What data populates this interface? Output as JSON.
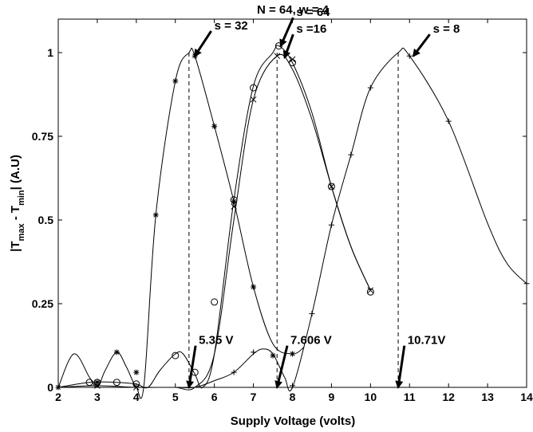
{
  "chart_data": {
    "type": "line",
    "title": "N = 64,  w = 4",
    "xlabel": "Supply Voltage (volts)",
    "ylabel": "|T_max - T_min| (A.U)",
    "xlim": [
      2,
      14
    ],
    "ylim": [
      0,
      1.1
    ],
    "xticks": [
      2,
      3,
      4,
      5,
      6,
      7,
      8,
      9,
      10,
      11,
      12,
      13,
      14
    ],
    "yticks": [
      {
        "value": 0,
        "label": "0"
      },
      {
        "value": 0.25,
        "label": "0.25"
      },
      {
        "value": 0.5,
        "label": "0.5"
      },
      {
        "value": 0.75,
        "label": "0.75"
      },
      {
        "value": 1,
        "label": "1"
      }
    ],
    "grid": false,
    "series": [
      {
        "name": "s = 32",
        "marker": "asterisk",
        "curve": [
          [
            2,
            0
          ],
          [
            2.4,
            0.1
          ],
          [
            2.8,
            0.03
          ],
          [
            3.0,
            0.0
          ],
          [
            3.2,
            0.05
          ],
          [
            3.5,
            0.105
          ],
          [
            3.75,
            0.06
          ],
          [
            4.0,
            0.0
          ],
          [
            4.2,
            0.01
          ],
          [
            4.5,
            0.515
          ],
          [
            5.0,
            0.915
          ],
          [
            5.35,
            1.0
          ],
          [
            5.5,
            0.99
          ],
          [
            6.0,
            0.78
          ],
          [
            6.5,
            0.555
          ],
          [
            7.0,
            0.3
          ],
          [
            7.5,
            0.13
          ],
          [
            8.0,
            0.1
          ],
          [
            8.3,
            0.12
          ]
        ],
        "points": [
          [
            2,
            0
          ],
          [
            3,
            0.015
          ],
          [
            3.5,
            0.105
          ],
          [
            4,
            0.045
          ],
          [
            4.5,
            0.515
          ],
          [
            5,
            0.915
          ],
          [
            5.5,
            0.99
          ],
          [
            6,
            0.78
          ],
          [
            6.5,
            0.555
          ],
          [
            7,
            0.3
          ],
          [
            7.5,
            0.095
          ],
          [
            8,
            0.1
          ]
        ]
      },
      {
        "name": "s = 64",
        "marker": "circle",
        "curve": [
          [
            2,
            0
          ],
          [
            2.8,
            0.015
          ],
          [
            3.5,
            0.015
          ],
          [
            4.0,
            0.01
          ],
          [
            4.3,
            0.0
          ],
          [
            4.6,
            0.05
          ],
          [
            5.0,
            0.1
          ],
          [
            5.2,
            0.1
          ],
          [
            5.5,
            0.04
          ],
          [
            5.7,
            0.0
          ],
          [
            6.0,
            0.1
          ],
          [
            6.5,
            0.56
          ],
          [
            7.0,
            0.9
          ],
          [
            7.5,
            1.0
          ],
          [
            7.65,
            1.02
          ],
          [
            8.0,
            0.97
          ],
          [
            8.5,
            0.82
          ],
          [
            9.0,
            0.6
          ],
          [
            9.5,
            0.42
          ],
          [
            10.0,
            0.29
          ]
        ],
        "points": [
          [
            2.8,
            0.015
          ],
          [
            3,
            0.015
          ],
          [
            3.5,
            0.015
          ],
          [
            4,
            0.01
          ],
          [
            5,
            0.095
          ],
          [
            5.5,
            0.045
          ],
          [
            6,
            0.255
          ],
          [
            6.5,
            0.56
          ],
          [
            7,
            0.895
          ],
          [
            7.65,
            1.02
          ],
          [
            8,
            0.97
          ],
          [
            9,
            0.6
          ],
          [
            10,
            0.285
          ]
        ]
      },
      {
        "name": "s =16",
        "marker": "x",
        "curve": [
          [
            2,
            0
          ],
          [
            3.0,
            0.005
          ],
          [
            4.0,
            0.0
          ],
          [
            4.5,
            0.0
          ],
          [
            5.0,
            0.0
          ],
          [
            5.5,
            0.0
          ],
          [
            6.0,
            0.1
          ],
          [
            6.5,
            0.5
          ],
          [
            7.0,
            0.86
          ],
          [
            7.606,
            0.99
          ],
          [
            8.0,
            0.95
          ],
          [
            8.5,
            0.8
          ],
          [
            9.0,
            0.6
          ],
          [
            9.5,
            0.42
          ],
          [
            10.0,
            0.29
          ]
        ],
        "points": [
          [
            3,
            0.005
          ],
          [
            4,
            0.0
          ],
          [
            6.5,
            0.54
          ],
          [
            7,
            0.86
          ],
          [
            7.606,
            0.99
          ],
          [
            8,
            0.98
          ],
          [
            9,
            0.6
          ],
          [
            10,
            0.29
          ]
        ]
      },
      {
        "name": "s = 8",
        "marker": "plus",
        "curve": [
          [
            2,
            0
          ],
          [
            4,
            0
          ],
          [
            5,
            0
          ],
          [
            5.5,
            0
          ],
          [
            6.0,
            0.02
          ],
          [
            6.5,
            0.045
          ],
          [
            7.0,
            0.1
          ],
          [
            7.25,
            0.115
          ],
          [
            7.5,
            0.1
          ],
          [
            7.8,
            0.03
          ],
          [
            8.0,
            0.0
          ],
          [
            8.5,
            0.22
          ],
          [
            9.0,
            0.485
          ],
          [
            9.5,
            0.695
          ],
          [
            10.0,
            0.895
          ],
          [
            10.71,
            1.0
          ],
          [
            11.0,
            0.99
          ],
          [
            12.0,
            0.795
          ],
          [
            13.0,
            0.49
          ],
          [
            13.5,
            0.37
          ],
          [
            14.0,
            0.31
          ]
        ],
        "points": [
          [
            6.5,
            0.045
          ],
          [
            7,
            0.105
          ],
          [
            8,
            0.005
          ],
          [
            8.5,
            0.22
          ],
          [
            9,
            0.485
          ],
          [
            9.5,
            0.695
          ],
          [
            10,
            0.895
          ],
          [
            11,
            0.99
          ],
          [
            12,
            0.795
          ],
          [
            14,
            0.31
          ]
        ]
      }
    ],
    "vlines": [
      5.35,
      7.606,
      10.71
    ],
    "annotations": [
      {
        "text": "s = 32",
        "arrow_to": [
          5.5,
          0.99
        ],
        "text_at": [
          6.0,
          1.055
        ]
      },
      {
        "text": "s = 64",
        "arrow_to": [
          7.7,
          1.02
        ],
        "text_at": [
          8.1,
          1.095
        ]
      },
      {
        "text": "s =16",
        "arrow_to": [
          7.8,
          0.985
        ],
        "text_at": [
          8.1,
          1.045
        ]
      },
      {
        "text": "s = 8",
        "arrow_to": [
          11.1,
          0.99
        ],
        "text_at": [
          11.6,
          1.045
        ]
      },
      {
        "text": "5.35 V",
        "arrow_to": [
          5.35,
          0.0
        ],
        "text_at": [
          5.6,
          0.115
        ]
      },
      {
        "text": "7.606 V",
        "arrow_to": [
          7.606,
          0.0
        ],
        "text_at": [
          7.95,
          0.115
        ]
      },
      {
        "text": "10.71V",
        "arrow_to": [
          10.71,
          0.0
        ],
        "text_at": [
          10.95,
          0.115
        ]
      }
    ]
  }
}
